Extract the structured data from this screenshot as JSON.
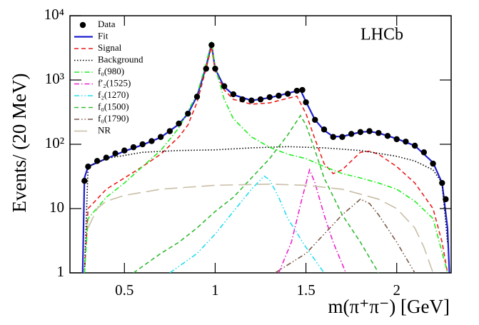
{
  "chart_data": {
    "type": "line",
    "title": "LHCb",
    "x_label": "m(π⁺π⁻) [GeV]",
    "y_label": "Events/ (20 MeV)",
    "log_y": true,
    "legend": "upper left",
    "xlim": [
      0.2,
      2.3
    ],
    "ylim": [
      1,
      10000
    ],
    "xticks": [
      0.5,
      1,
      1.5,
      2
    ],
    "yticks": [
      1,
      10,
      {
        "value": 100,
        "label": "10²"
      },
      {
        "value": 1000,
        "label": "10³"
      },
      {
        "value": 10000,
        "label": "10⁴"
      }
    ],
    "series": [
      {
        "name": "Data",
        "kind": "scatter",
        "color": "#000000",
        "x": [
          0.28,
          0.3,
          0.35,
          0.4,
          0.45,
          0.5,
          0.55,
          0.6,
          0.65,
          0.7,
          0.75,
          0.8,
          0.85,
          0.9,
          0.95,
          0.98,
          1.0,
          1.05,
          1.1,
          1.15,
          1.2,
          1.25,
          1.3,
          1.35,
          1.4,
          1.45,
          1.48,
          1.5,
          1.55,
          1.6,
          1.65,
          1.7,
          1.75,
          1.8,
          1.85,
          1.9,
          1.95,
          2.0,
          2.05,
          2.1,
          2.15,
          2.2,
          2.25,
          2.27
        ],
        "values": [
          27,
          45,
          55,
          62,
          72,
          80,
          90,
          100,
          112,
          130,
          160,
          210,
          300,
          550,
          1500,
          3500,
          1500,
          800,
          600,
          500,
          480,
          500,
          540,
          570,
          610,
          680,
          700,
          450,
          240,
          170,
          130,
          130,
          145,
          155,
          160,
          150,
          135,
          120,
          110,
          95,
          75,
          50,
          25,
          14
        ]
      },
      {
        "name": "Fit",
        "kind": "line",
        "color": "#1f1fd0",
        "dash": "solid",
        "x": [
          0.27,
          0.28,
          0.3,
          0.4,
          0.5,
          0.6,
          0.7,
          0.8,
          0.85,
          0.9,
          0.95,
          0.98,
          1.0,
          1.05,
          1.1,
          1.2,
          1.3,
          1.4,
          1.47,
          1.5,
          1.55,
          1.6,
          1.65,
          1.7,
          1.8,
          1.85,
          1.9,
          2.0,
          2.1,
          2.2,
          2.25,
          2.28,
          2.29
        ],
        "values": [
          1,
          30,
          45,
          60,
          78,
          98,
          128,
          205,
          300,
          560,
          1600,
          3600,
          1500,
          780,
          590,
          480,
          530,
          620,
          700,
          460,
          240,
          165,
          132,
          132,
          155,
          158,
          150,
          122,
          95,
          52,
          25,
          5,
          1
        ]
      },
      {
        "name": "Signal",
        "kind": "line",
        "color": "#ee1c1c",
        "dash": "dashed",
        "x": [
          0.28,
          0.3,
          0.4,
          0.5,
          0.6,
          0.7,
          0.8,
          0.85,
          0.9,
          0.95,
          0.98,
          1.0,
          1.05,
          1.1,
          1.2,
          1.3,
          1.4,
          1.45,
          1.5,
          1.55,
          1.6,
          1.65,
          1.7,
          1.75,
          1.8,
          1.85,
          1.9,
          2.0,
          2.1,
          2.2,
          2.25,
          2.28
        ],
        "values": [
          1,
          10,
          20,
          30,
          45,
          70,
          130,
          200,
          450,
          1500,
          3300,
          1400,
          700,
          500,
          420,
          440,
          520,
          560,
          300,
          120,
          50,
          35,
          40,
          55,
          75,
          78,
          70,
          45,
          25,
          10,
          3,
          1
        ]
      },
      {
        "name": "Background",
        "kind": "line",
        "color": "#000000",
        "dash": "dotted",
        "x": [
          0.28,
          0.3,
          0.4,
          0.6,
          0.8,
          1.0,
          1.2,
          1.4,
          1.6,
          1.8,
          2.0,
          2.1,
          2.2,
          2.25,
          2.28
        ],
        "values": [
          1,
          45,
          60,
          75,
          80,
          82,
          88,
          92,
          88,
          80,
          65,
          55,
          40,
          25,
          3
        ]
      },
      {
        "name": "f₀(980)",
        "kind": "line",
        "color": "#22ee22",
        "dash": "dashdot",
        "x": [
          0.28,
          0.3,
          0.4,
          0.5,
          0.6,
          0.7,
          0.8,
          0.9,
          0.95,
          0.98,
          1.0,
          1.05,
          1.1,
          1.2,
          1.3,
          1.4,
          1.5,
          1.6,
          1.7,
          1.8,
          1.9,
          2.0,
          2.1,
          2.2,
          2.28
        ],
        "values": [
          1,
          7,
          15,
          25,
          45,
          80,
          180,
          600,
          1800,
          4000,
          1600,
          500,
          250,
          130,
          90,
          70,
          60,
          45,
          35,
          30,
          25,
          20,
          13,
          7,
          1
        ]
      },
      {
        "name": "f′₂(1525)",
        "kind": "line",
        "color": "#ee22cc",
        "dash": "dashdot",
        "x": [
          1.35,
          1.42,
          1.48,
          1.52,
          1.55,
          1.6,
          1.65,
          1.72
        ],
        "values": [
          1,
          3,
          15,
          40,
          25,
          8,
          3,
          1
        ]
      },
      {
        "name": "f₂(1270)",
        "kind": "line",
        "color": "#22ddee",
        "dash": "dashdotdot",
        "x": [
          0.75,
          0.9,
          1.0,
          1.1,
          1.2,
          1.27,
          1.3,
          1.35,
          1.4,
          1.5,
          1.6
        ],
        "values": [
          1,
          2,
          4,
          9,
          20,
          32,
          28,
          15,
          7,
          2.5,
          1
        ]
      },
      {
        "name": "f₀(1500)",
        "kind": "line",
        "color": "#33bb33",
        "dash": "dashed",
        "x": [
          0.55,
          0.7,
          0.8,
          0.9,
          1.0,
          1.1,
          1.2,
          1.3,
          1.4,
          1.47,
          1.5,
          1.55,
          1.6,
          1.7,
          1.8,
          1.9
        ],
        "values": [
          1,
          2,
          3,
          5,
          9,
          15,
          30,
          60,
          140,
          280,
          200,
          80,
          30,
          8,
          3,
          1
        ]
      },
      {
        "name": "f₀(1790)",
        "kind": "line",
        "color": "#7a5a4a",
        "dash": "dashdotdot",
        "x": [
          1.33,
          1.5,
          1.6,
          1.7,
          1.8,
          1.85,
          1.9,
          2.0,
          2.1
        ],
        "values": [
          1,
          2,
          4,
          8,
          14,
          12,
          8,
          3,
          1
        ]
      },
      {
        "name": "NR",
        "kind": "line",
        "color": "#c8bea6",
        "dash": "longdash",
        "x": [
          0.3,
          0.35,
          0.4,
          0.5,
          0.7,
          1.0,
          1.3,
          1.5,
          1.7,
          1.9,
          2.0,
          2.1,
          2.15,
          2.2
        ],
        "values": [
          5,
          10,
          13,
          16,
          20,
          23,
          24,
          23,
          20,
          14,
          10,
          5,
          2.5,
          1
        ]
      }
    ]
  }
}
